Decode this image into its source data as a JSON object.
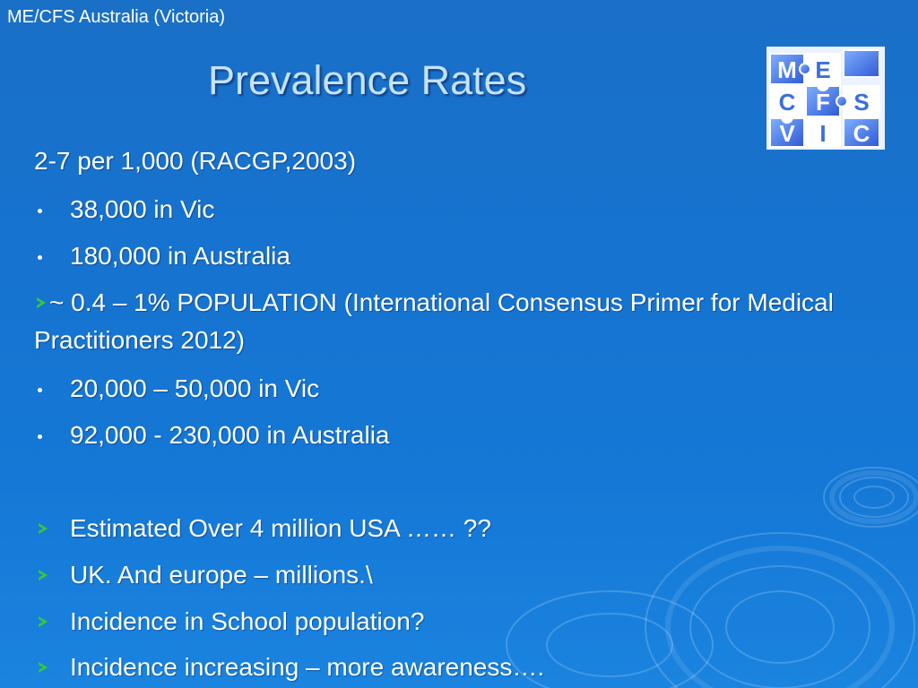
{
  "header": {
    "org_label": "ME/CFS Australia (Victoria)"
  },
  "slide": {
    "title": "Prevalence Rates",
    "logo": {
      "text_rows": [
        [
          "M",
          "E"
        ],
        [
          "C",
          "F",
          "S"
        ],
        [
          "V",
          "I",
          "C"
        ]
      ]
    },
    "lines": [
      {
        "id": "source1",
        "marker": "none",
        "text": "2-7  per 1,000  (RACGP,2003)"
      },
      {
        "id": "vic1",
        "marker": "dot",
        "text": "38,000 in Vic"
      },
      {
        "id": "aus1",
        "marker": "dot",
        "text": "180,000 in Australia"
      },
      {
        "id": "source2",
        "marker": "chevron-inline",
        "text": "~ 0.4 – 1% POPULATION (International Consensus Primer for Medical Practitioners  2012)"
      },
      {
        "id": "vic2",
        "marker": "dot",
        "text": "20,000 – 50,000 in Vic"
      },
      {
        "id": "aus2",
        "marker": "dot",
        "text": "92,000 - 230,000 in Australia"
      },
      {
        "id": "usa",
        "marker": "chevron",
        "text": "Estimated Over 4 million USA …… ??"
      },
      {
        "id": "uk",
        "marker": "chevron",
        "text": "UK. And europe – millions.\\"
      },
      {
        "id": "school",
        "marker": "chevron",
        "text": "Incidence in School population?"
      },
      {
        "id": "increasing",
        "marker": "chevron",
        "text": "Incidence  increasing – more awareness…."
      }
    ]
  },
  "colors": {
    "background": "#1673cf",
    "title": "#c6e2ff",
    "text": "#ffffff",
    "chevron": "#33cc33"
  },
  "icons": [
    "puzzle-logo-icon",
    "bullet-dot-icon",
    "chevron-right-icon",
    "ripple-decoration-icon"
  ]
}
